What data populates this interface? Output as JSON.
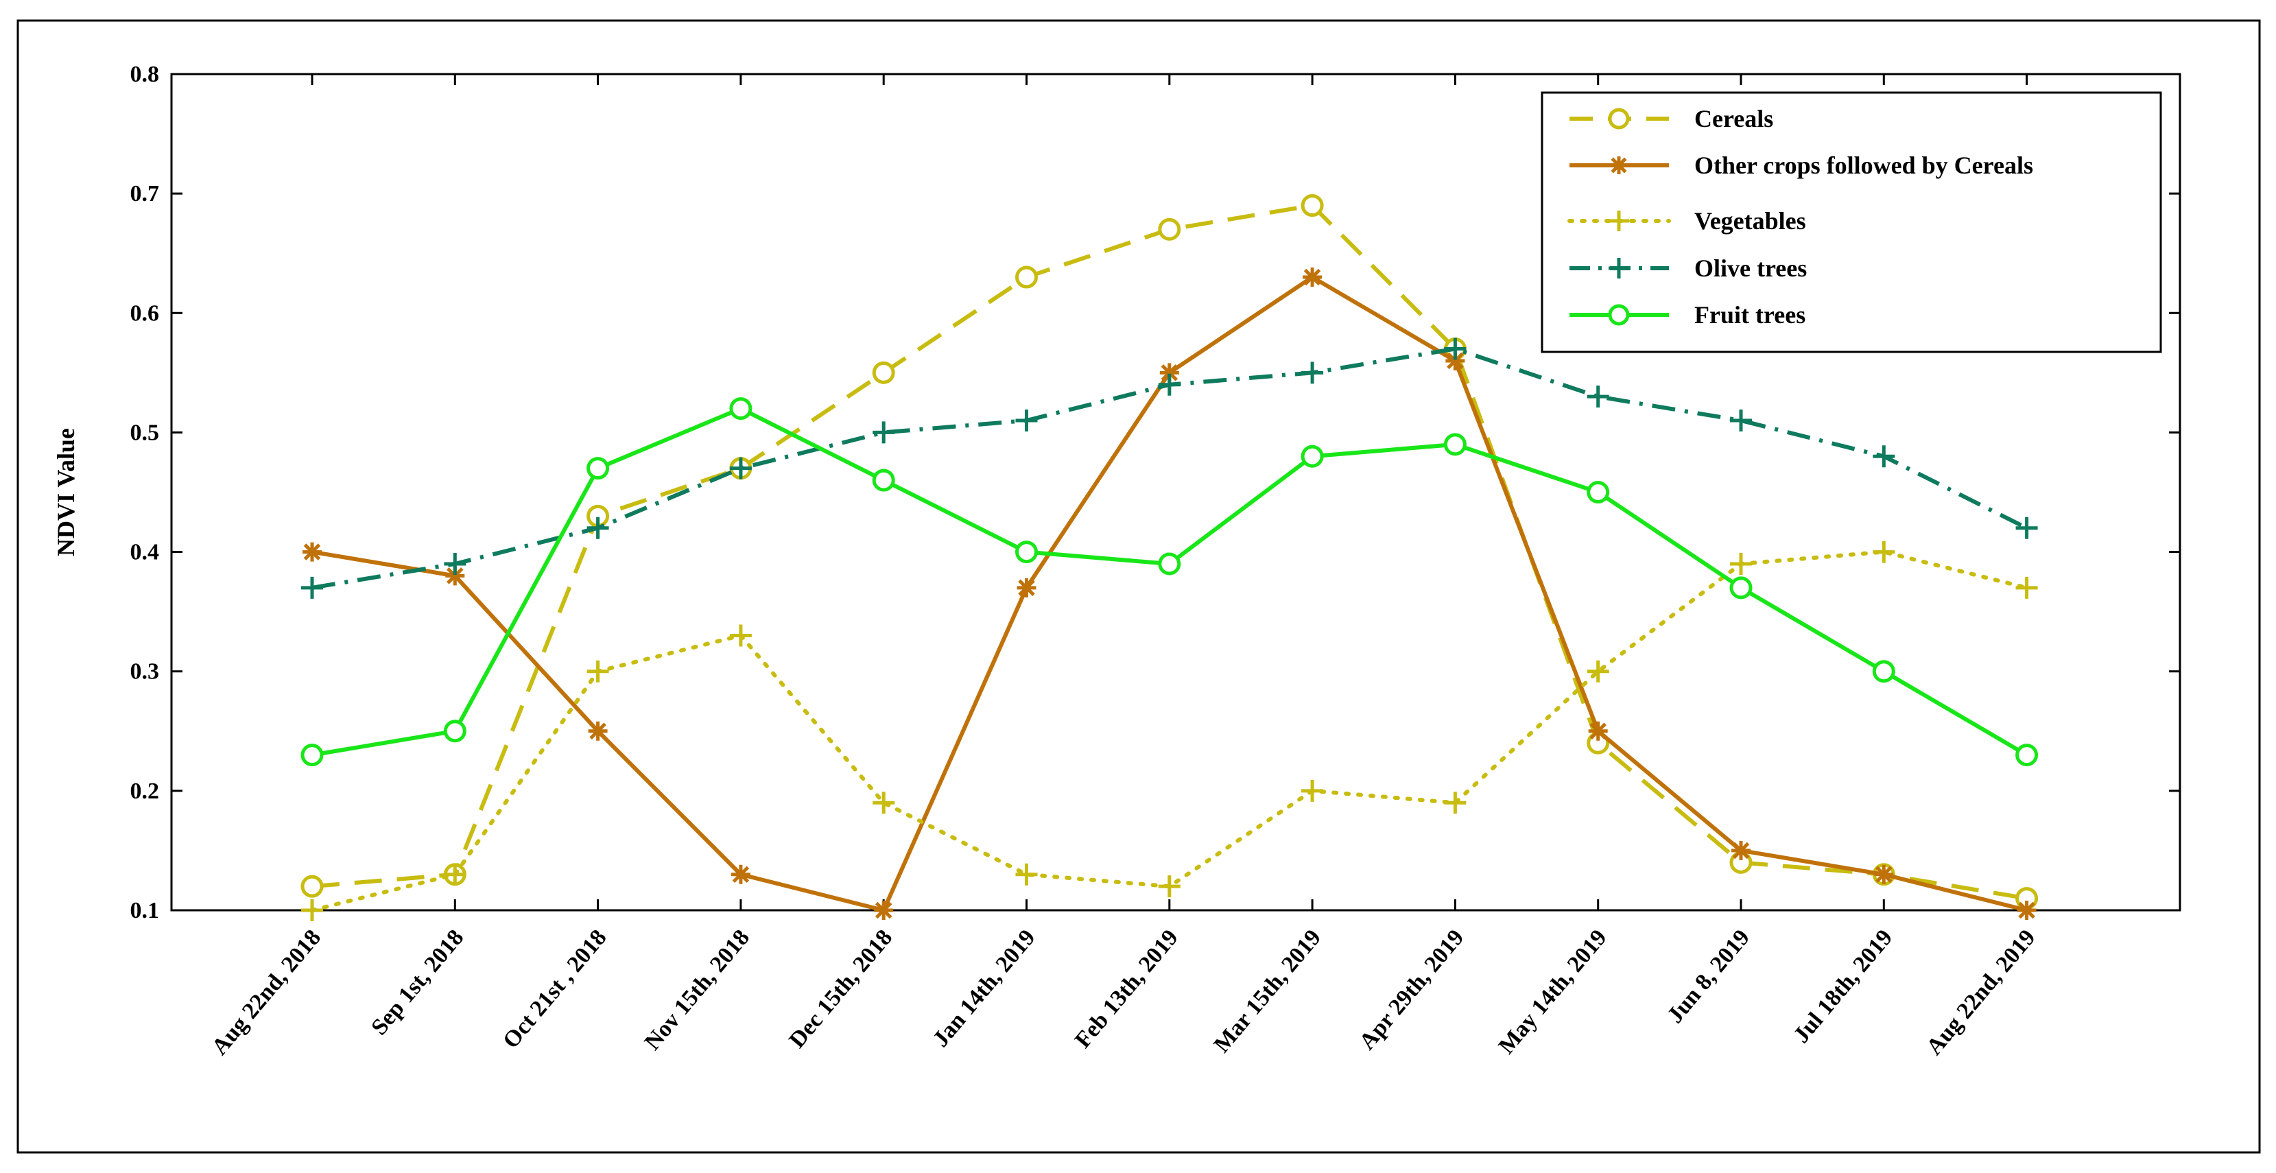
{
  "chart_data": {
    "type": "line",
    "title": "",
    "xlabel": "",
    "ylabel": "NDVI Value",
    "ylim": [
      0.1,
      0.8
    ],
    "yticks": [
      "0.1",
      "0.2",
      "0.3",
      "0.4",
      "0.5",
      "0.6",
      "0.7",
      "0.8"
    ],
    "grid": false,
    "legend_position": "top-right",
    "categories": [
      "Aug 22nd, 2018",
      "Sep 1st, 2018",
      "Oct 21st , 2018",
      "Nov 15th, 2018",
      "Dec 15th, 2018",
      "Jan 14th, 2019",
      "Feb 13th, 2019",
      "Mar 15th, 2019",
      "Apr 29th, 2019",
      "May 14th, 2019",
      "Jun 8, 2019",
      "Jul 18th, 2019",
      "Aug 22nd, 2019"
    ],
    "series": [
      {
        "name": "Cereals",
        "color": "#C8BC10",
        "dash": "dashed",
        "marker": "circle",
        "values": [
          0.12,
          0.13,
          0.43,
          0.47,
          0.55,
          0.63,
          0.67,
          0.69,
          0.57,
          0.24,
          0.14,
          0.13,
          0.11
        ]
      },
      {
        "name": "Other crops followed by Cereals",
        "color": "#C0720A",
        "dash": "solid",
        "marker": "asterisk",
        "values": [
          0.4,
          0.38,
          0.25,
          0.13,
          0.1,
          0.37,
          0.55,
          0.63,
          0.56,
          0.25,
          0.15,
          0.13,
          0.1
        ]
      },
      {
        "name": "Vegetables",
        "color": "#C8BC10",
        "dash": "dotted",
        "marker": "plus",
        "values": [
          0.1,
          0.13,
          0.3,
          0.33,
          0.19,
          0.13,
          0.12,
          0.2,
          0.19,
          0.3,
          0.39,
          0.4,
          0.37
        ]
      },
      {
        "name": "Olive trees",
        "color": "#0E7A5E",
        "dash": "dashdot",
        "marker": "plus",
        "values": [
          0.37,
          0.39,
          0.42,
          0.47,
          0.5,
          0.51,
          0.54,
          0.55,
          0.57,
          0.53,
          0.51,
          0.48,
          0.42
        ]
      },
      {
        "name": "Fruit trees",
        "color": "#19E619",
        "dash": "solid",
        "marker": "circle",
        "values": [
          0.23,
          0.25,
          0.47,
          0.52,
          0.46,
          0.4,
          0.39,
          0.48,
          0.49,
          0.45,
          0.37,
          0.3,
          0.23
        ]
      }
    ]
  }
}
